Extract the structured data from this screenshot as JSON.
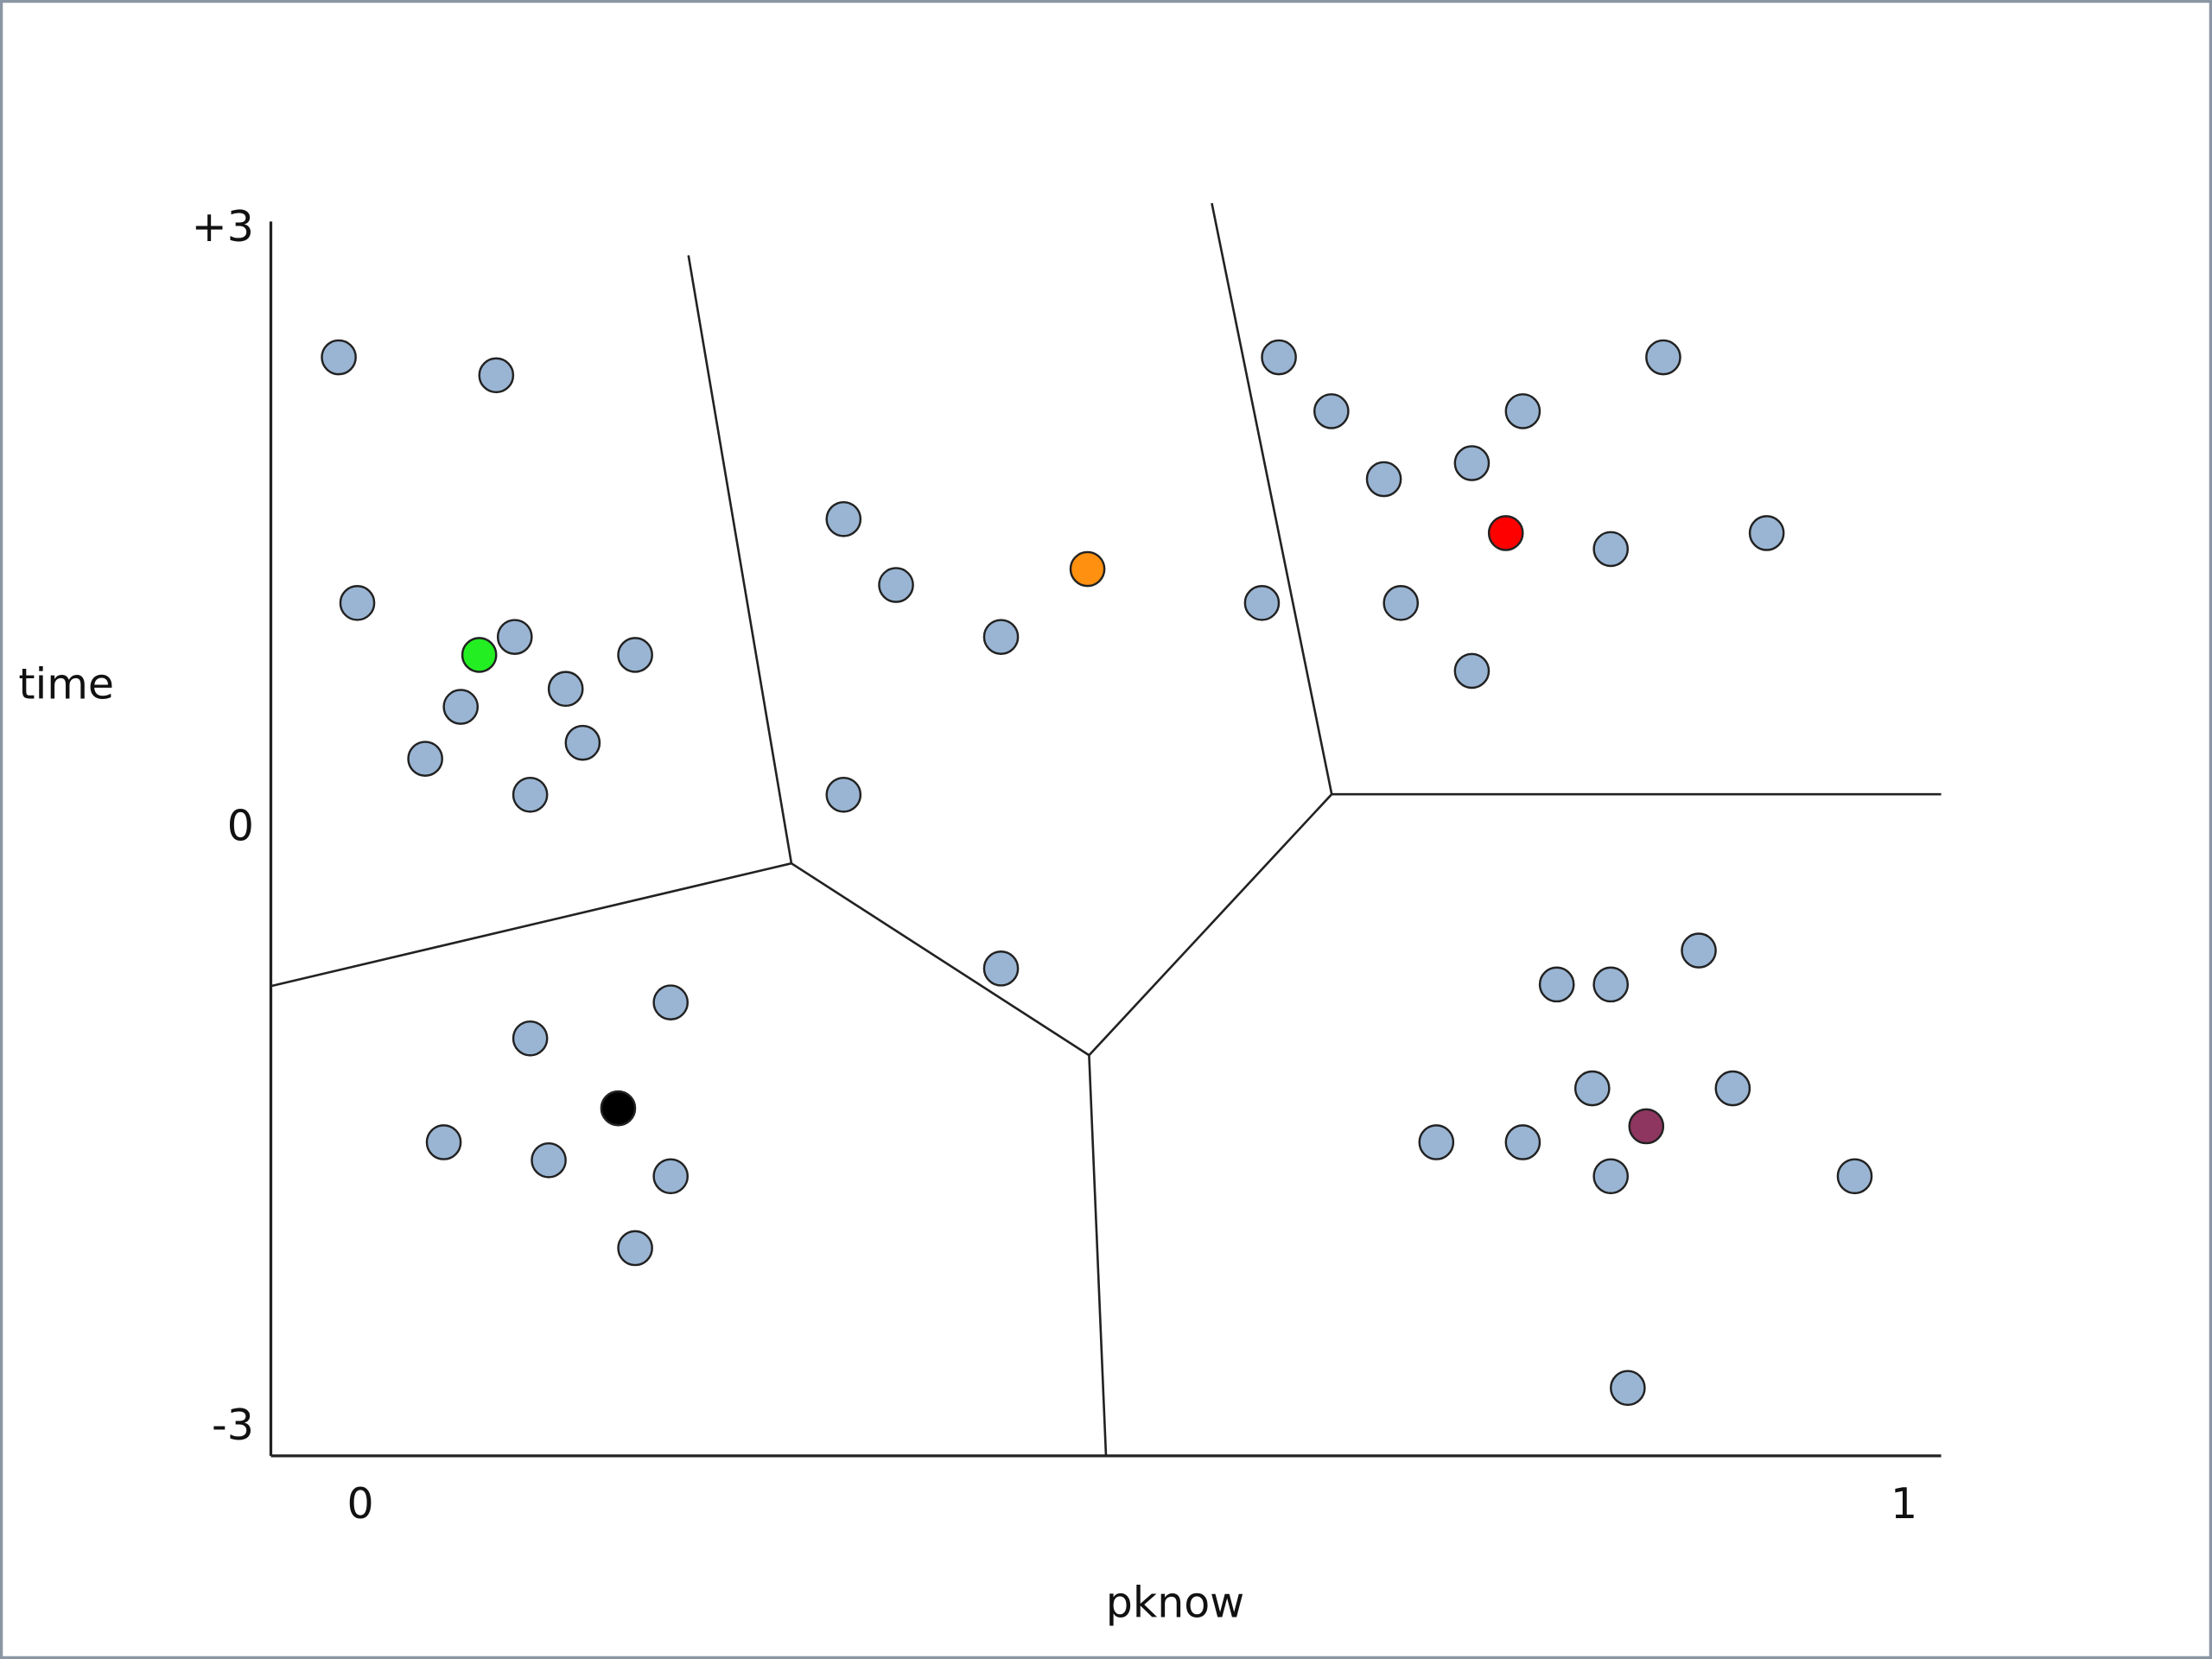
{
  "chart_data": {
    "type": "scatter",
    "x_label": "pknow",
    "y_label": "time",
    "xlim": [
      -0.058,
      1.024
    ],
    "ylim": [
      -3.14,
      3.04
    ],
    "xticks": [
      0,
      1
    ],
    "yticks": [
      {
        "value": 3,
        "label": "+3"
      },
      0,
      -3
    ],
    "series": [
      {
        "color": "#9ab5d3",
        "x": [
          -0.014,
          0.088,
          -0.002,
          0.1,
          0.178,
          0.065,
          0.133,
          0.144,
          0.042,
          0.11,
          0.313,
          0.347,
          0.415,
          0.313,
          0.415,
          0.595,
          0.629,
          0.753,
          0.844,
          0.663,
          0.72,
          0.81,
          0.911,
          0.584,
          0.674,
          0.72,
          0.201,
          0.11,
          0.054,
          0.122,
          0.201,
          0.178,
          0.775,
          0.81,
          0.867,
          0.798,
          0.889,
          0.697,
          0.753,
          0.81,
          0.968,
          0.821
        ],
        "y": [
          2.36,
          2.27,
          1.13,
          0.96,
          0.87,
          0.61,
          0.7,
          0.43,
          0.35,
          0.17,
          1.55,
          1.22,
          0.96,
          0.17,
          -0.7,
          2.36,
          2.09,
          2.09,
          2.36,
          1.75,
          1.83,
          1.4,
          1.48,
          1.13,
          1.13,
          0.79,
          -0.87,
          -1.05,
          -1.57,
          -1.66,
          -1.74,
          -2.1,
          -0.78,
          -0.78,
          -0.61,
          -1.3,
          -1.3,
          -1.57,
          -1.57,
          -1.74,
          -1.74,
          -2.8
        ]
      },
      {
        "color": "#22ee22",
        "x": [
          0.077
        ],
        "y": [
          0.87
        ]
      },
      {
        "color": "#ff9010",
        "x": [
          0.471
        ],
        "y": [
          1.3
        ]
      },
      {
        "color": "#ff0000",
        "x": [
          0.742
        ],
        "y": [
          1.48
        ]
      },
      {
        "color": "#000000",
        "x": [
          0.167
        ],
        "y": [
          -1.4
        ]
      },
      {
        "color": "#8e3660",
        "x": [
          0.833
        ],
        "y": [
          -1.49
        ]
      }
    ]
  }
}
